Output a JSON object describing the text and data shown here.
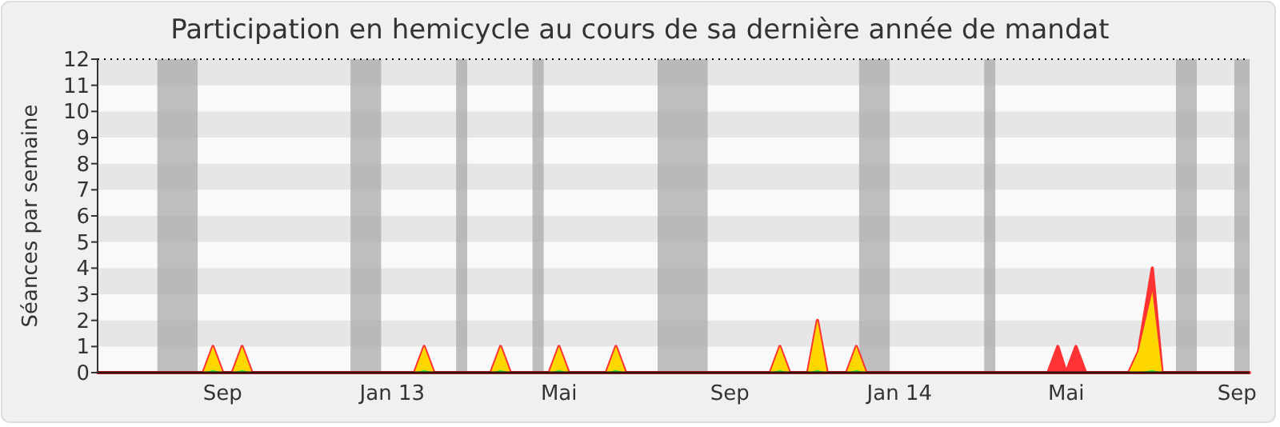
{
  "chart_data": {
    "type": "area",
    "title": "Participation en hemicycle au cours de sa dernière année de mandat",
    "ylabel": "Séances par semaine",
    "x": [
      "2012-06-03",
      "2012-08-18",
      "2012-08-25",
      "2012-09-01",
      "2012-09-08",
      "2012-09-15",
      "2012-09-22",
      "2013-01-17",
      "2013-01-24",
      "2013-01-31",
      "2013-03-13",
      "2013-03-20",
      "2013-03-27",
      "2013-04-24",
      "2013-05-01",
      "2013-05-08",
      "2013-06-04",
      "2013-06-11",
      "2013-06-18",
      "2013-09-30",
      "2013-10-07",
      "2013-10-14",
      "2013-10-27",
      "2013-11-03",
      "2013-11-10",
      "2013-11-24",
      "2013-12-01",
      "2013-12-08",
      "2014-04-18",
      "2014-04-25",
      "2014-05-01",
      "2014-05-08",
      "2014-05-15",
      "2014-06-15",
      "2014-06-22",
      "2014-07-02",
      "2014-07-09",
      "2014-09-10"
    ],
    "series": [
      {
        "color": "#ff3333",
        "values": [
          0,
          0,
          1,
          0,
          0,
          1,
          0,
          0,
          1,
          0,
          0,
          1,
          0,
          0,
          1,
          0,
          0,
          1,
          0,
          0,
          1,
          0,
          0,
          2,
          0,
          0,
          1,
          0,
          0,
          1,
          0,
          1,
          0,
          0,
          0.8,
          4,
          0,
          0
        ]
      },
      {
        "color": "#ffd700",
        "values": [
          0,
          0,
          1,
          0,
          0,
          1,
          0,
          0,
          1,
          0,
          0,
          1,
          0,
          0,
          1,
          0,
          0,
          1,
          0,
          0,
          1,
          0,
          0,
          2,
          0,
          0,
          1,
          0,
          0,
          0,
          0,
          0,
          0,
          0,
          0.8,
          3.1,
          0,
          0
        ]
      },
      {
        "color": "#33ee33",
        "values": [
          0,
          0,
          0.1,
          0,
          0,
          0.1,
          0,
          0,
          0.1,
          0,
          0,
          0.1,
          0,
          0,
          0.1,
          0,
          0,
          0.1,
          0,
          0,
          0.1,
          0,
          0,
          0.1,
          0,
          0,
          0.1,
          0,
          0,
          0,
          0,
          0,
          0,
          0,
          0,
          0.1,
          0,
          0
        ]
      }
    ],
    "xlim": [
      "2012-06-03",
      "2014-09-10"
    ],
    "xticks": [
      {
        "value": "2012-09-01",
        "label": "Sep"
      },
      {
        "value": "2013-01-01",
        "label": "Jan 13"
      },
      {
        "value": "2013-05-01",
        "label": "Mai"
      },
      {
        "value": "2013-09-01",
        "label": "Sep"
      },
      {
        "value": "2014-01-01",
        "label": "Jan 14"
      },
      {
        "value": "2014-05-01",
        "label": "Mai"
      },
      {
        "value": "2014-09-01",
        "label": "Sep"
      }
    ],
    "ylim": [
      0,
      12
    ],
    "yticks": [
      0,
      1,
      2,
      3,
      4,
      5,
      6,
      7,
      8,
      9,
      10,
      11,
      12
    ],
    "bands": [
      {
        "axis": "x",
        "from": "2012-07-16",
        "to": "2012-08-14",
        "color": "#aaaaaa"
      },
      {
        "axis": "x",
        "from": "2012-12-02",
        "to": "2012-12-24",
        "color": "#aaaaaa"
      },
      {
        "axis": "x",
        "from": "2013-02-16",
        "to": "2013-02-24",
        "color": "#aaaaaa"
      },
      {
        "axis": "x",
        "from": "2013-04-12",
        "to": "2013-04-20",
        "color": "#aaaaaa"
      },
      {
        "axis": "x",
        "from": "2013-07-11",
        "to": "2013-08-16",
        "color": "#aaaaaa"
      },
      {
        "axis": "x",
        "from": "2013-12-03",
        "to": "2013-12-25",
        "color": "#aaaaaa"
      },
      {
        "axis": "x",
        "from": "2014-03-03",
        "to": "2014-03-11",
        "color": "#aaaaaa"
      },
      {
        "axis": "x",
        "from": "2014-07-19",
        "to": "2014-08-03",
        "color": "#aaaaaa"
      },
      {
        "axis": "x",
        "from": "2014-08-30",
        "to": "2014-09-10",
        "color": "#aaaaaa"
      }
    ]
  }
}
